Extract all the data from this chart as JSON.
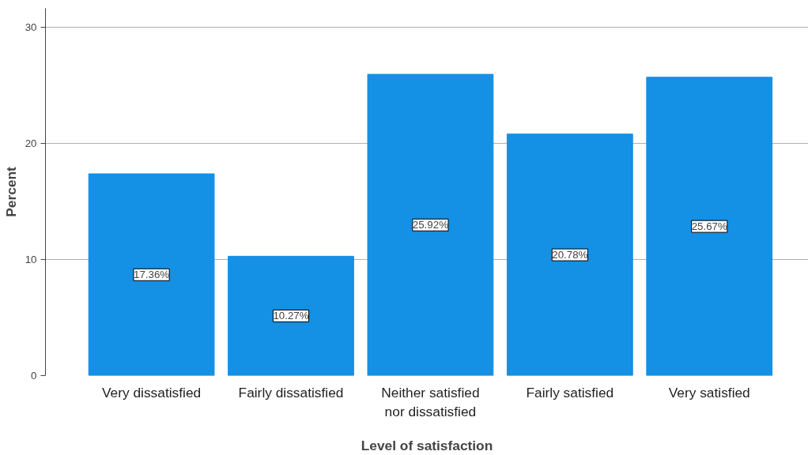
{
  "chart_data": {
    "type": "bar",
    "xlabel": "Level of satisfaction",
    "ylabel": "Percent",
    "categories": [
      "Very dissatisfied",
      "Fairly dissatisfied",
      "Neither satisfied nor dissatisfied",
      "Fairly satisfied",
      "Very satisfied"
    ],
    "values": [
      17.36,
      10.27,
      25.92,
      20.78,
      25.67
    ],
    "value_labels": [
      "17.36%",
      "10.27%",
      "25.92%",
      "20.78%",
      "25.67%"
    ],
    "color": "#1490e4",
    "ylim": [
      0,
      31.6
    ],
    "yticks": [
      0,
      10,
      20,
      30
    ],
    "grid": "y"
  }
}
